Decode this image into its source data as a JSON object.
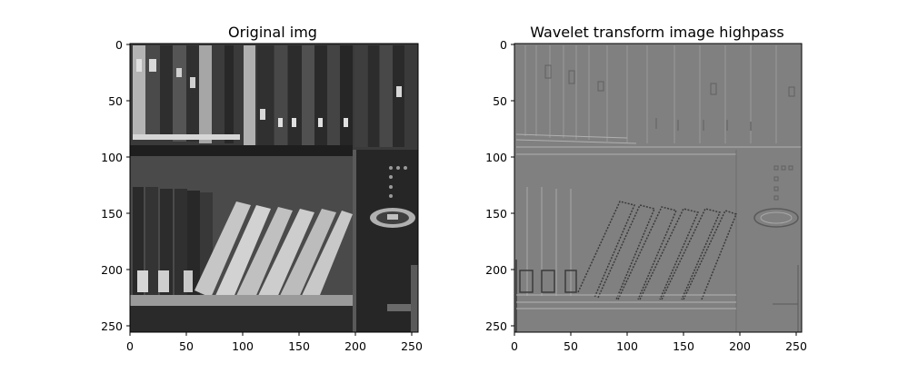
{
  "panels": [
    {
      "title": "Original img",
      "x_ticks": [
        "0",
        "50",
        "100",
        "150",
        "200",
        "250"
      ],
      "y_ticks": [
        "0",
        "50",
        "100",
        "150",
        "200",
        "250"
      ],
      "image_style": "grayscale photograph of books on a shelf"
    },
    {
      "title": "Wavelet transform image highpass",
      "x_ticks": [
        "0",
        "50",
        "100",
        "150",
        "200",
        "250"
      ],
      "y_ticks": [
        "0",
        "50",
        "100",
        "150",
        "200",
        "250"
      ],
      "image_style": "mid-gray highpass edge map"
    }
  ],
  "axis_range": [
    0,
    256
  ],
  "colors": {
    "shelf_dark": "#2a2a2a",
    "book_light": "#b8b8b8",
    "highpass_bg": "#808080"
  }
}
